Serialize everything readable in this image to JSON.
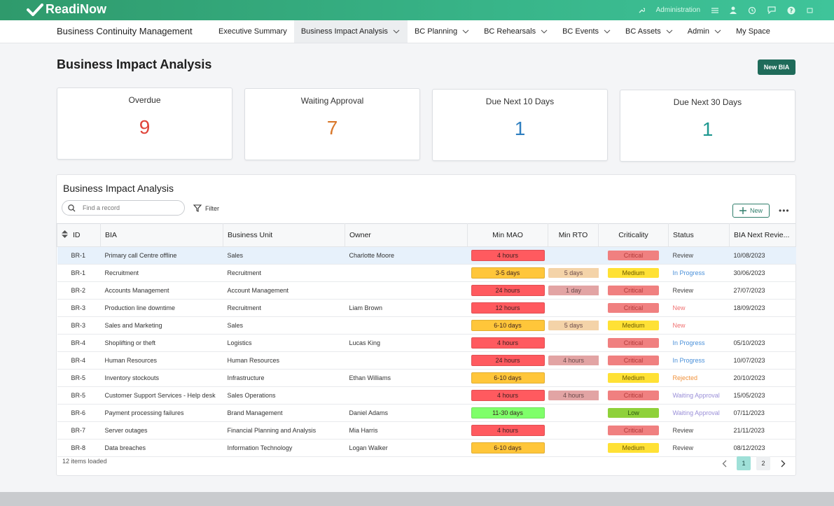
{
  "app": {
    "logo_text": "ReadiNow",
    "module_title": "Business Continuity Management"
  },
  "topbar": {
    "admin_label": "Administration",
    "icons": [
      "wrench-icon",
      "menu-icon",
      "user-icon",
      "history-icon",
      "chat-icon",
      "help-icon",
      "expand-icon"
    ]
  },
  "nav": {
    "items": [
      {
        "label": "Executive Summary",
        "dropdown": false,
        "active": false
      },
      {
        "label": "Business Impact Analysis",
        "dropdown": true,
        "active": true
      },
      {
        "label": "BC Planning",
        "dropdown": true,
        "active": false
      },
      {
        "label": "BC Rehearsals",
        "dropdown": true,
        "active": false
      },
      {
        "label": "BC Events",
        "dropdown": true,
        "active": false
      },
      {
        "label": "BC Assets",
        "dropdown": true,
        "active": false
      },
      {
        "label": "Admin",
        "dropdown": true,
        "active": false
      },
      {
        "label": "My Space",
        "dropdown": false,
        "active": false
      }
    ]
  },
  "page": {
    "title": "Business Impact Analysis",
    "new_button": "New BIA"
  },
  "cards": [
    {
      "title": "Overdue",
      "value": "9",
      "color": "#e0443a"
    },
    {
      "title": "Waiting Approval",
      "value": "7",
      "color": "#d9782b"
    },
    {
      "title": "Due Next 10 Days",
      "value": "1",
      "color": "#2f7fc0"
    },
    {
      "title": "Due Next 30 Days",
      "value": "1",
      "color": "#1e9890"
    }
  ],
  "grid": {
    "title": "Business Impact Analysis",
    "search_placeholder": "Find a record",
    "filter_label": "Filter",
    "new_label": "New",
    "more_label": "•••",
    "columns": [
      "ID",
      "BIA",
      "Business Unit",
      "Owner",
      "Min MAO",
      "Min RTO",
      "Criticality",
      "Status",
      "BIA Next Revie..."
    ],
    "rows": [
      {
        "id": "BR-1",
        "bia": "Primary call Centre offline",
        "unit": "Sales",
        "owner": "Charlotte Moore",
        "mao": "4 hours",
        "rto": "",
        "crit": "Critical",
        "status": "Review",
        "next": "10/08/2023"
      },
      {
        "id": "BR-1",
        "bia": "Recruitment",
        "unit": "Recruitment",
        "owner": "",
        "mao": "3-5 days",
        "rto": "5 days",
        "crit": "Medium",
        "status": "In Progress",
        "next": "30/06/2023"
      },
      {
        "id": "BR-2",
        "bia": "Accounts Management",
        "unit": "Account Management",
        "owner": "",
        "mao": "24 hours",
        "rto": "1 day",
        "crit": "Critical",
        "status": "Review",
        "next": "27/07/2023"
      },
      {
        "id": "BR-3",
        "bia": "Production line downtime",
        "unit": "Recruitment",
        "owner": "Liam Brown",
        "mao": "12 hours",
        "rto": "",
        "crit": "Critical",
        "status": "New",
        "next": "18/09/2023"
      },
      {
        "id": "BR-3",
        "bia": "Sales and Marketing",
        "unit": "Sales",
        "owner": "",
        "mao": "6-10 days",
        "rto": "5 days",
        "crit": "Medium",
        "status": "New",
        "next": ""
      },
      {
        "id": "BR-4",
        "bia": "Shoplifting or theft",
        "unit": "Logistics",
        "owner": "Lucas King",
        "mao": "4 hours",
        "rto": "",
        "crit": "Critical",
        "status": "In Progress",
        "next": "05/10/2023"
      },
      {
        "id": "BR-4",
        "bia": "Human Resources",
        "unit": "Human Resources",
        "owner": "",
        "mao": "24 hours",
        "rto": "4 hours",
        "crit": "Critical",
        "status": "In Progress",
        "next": "10/07/2023"
      },
      {
        "id": "BR-5",
        "bia": "Inventory stockouts",
        "unit": "Infrastructure",
        "owner": "Ethan Williams",
        "mao": "6-10 days",
        "rto": "",
        "crit": "Medium",
        "status": "Rejected",
        "next": "20/10/2023"
      },
      {
        "id": "BR-5",
        "bia": "Customer Support Services - Help desk",
        "unit": "Sales Operations",
        "owner": "",
        "mao": "4 hours",
        "rto": "4 hours",
        "crit": "Critical",
        "status": "Waiting Approval",
        "next": "15/05/2023"
      },
      {
        "id": "BR-6",
        "bia": "Payment processing failures",
        "unit": "Brand Management",
        "owner": "Daniel Adams",
        "mao": "11-30 days",
        "rto": "",
        "crit": "Low",
        "status": "Waiting Approval",
        "next": "07/11/2023"
      },
      {
        "id": "BR-7",
        "bia": "Server outages",
        "unit": "Financial Planning and Analysis",
        "owner": "Mia Harris",
        "mao": "4 hours",
        "rto": "",
        "crit": "Critical",
        "status": "Review",
        "next": "21/11/2023"
      },
      {
        "id": "BR-8",
        "bia": "Data breaches",
        "unit": "Information Technology",
        "owner": "Logan Walker",
        "mao": "6-10 days",
        "rto": "",
        "crit": "Medium",
        "status": "Review",
        "next": "08/12/2023"
      }
    ],
    "footer": "12 items loaded",
    "pages": [
      "1",
      "2"
    ],
    "current_page": "1"
  },
  "colors": {
    "mao": {
      "4 hours": "#ff5a5f",
      "24 hours": "#ff5a5f",
      "12 hours": "#ff5a5f",
      "3-5 days": "#ffc63a",
      "6-10 days": "#ffc63a",
      "11-30 days": "#7fff6a"
    },
    "rto": {
      "5 days": "#f4d3a8",
      "1 day": "#e2a4a4",
      "4 hours": "#e2a4a4"
    },
    "crit": {
      "Critical": "#f08080",
      "Medium": "#ffe135",
      "Low": "#8fd13a"
    },
    "crit_text": {
      "Critical": "#b23a3a",
      "Medium": "#6b5a00",
      "Low": "#2d5a10"
    },
    "status": {
      "Review": "#444444",
      "In Progress": "#4a90d9",
      "New": "#f07070",
      "Rejected": "#f0913a",
      "Waiting Approval": "#9a8fd8"
    }
  }
}
